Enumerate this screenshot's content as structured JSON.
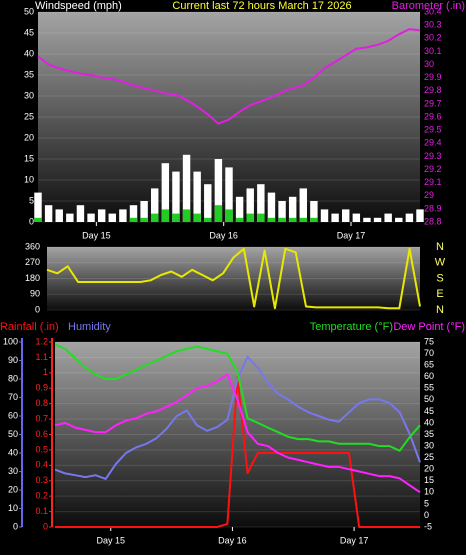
{
  "chart_data": [
    {
      "type": "combo",
      "title": "Current last 72 hours March 17 2026",
      "x": [
        0,
        2,
        4,
        6,
        8,
        10,
        12,
        14,
        16,
        18,
        20,
        22,
        24,
        26,
        28,
        30,
        32,
        34,
        36,
        38,
        40,
        42,
        44,
        46,
        48,
        50,
        52,
        54,
        56,
        58,
        60,
        62,
        64,
        66,
        68,
        70,
        72
      ],
      "xlim": [
        0,
        72
      ],
      "xticks": [
        {
          "value": 11,
          "label": "Day 15"
        },
        {
          "value": 35,
          "label": "Day 16"
        },
        {
          "value": 59,
          "label": "Day 17"
        }
      ],
      "ylim": [
        0,
        50
      ],
      "yticks": [
        0,
        5,
        10,
        15,
        20,
        25,
        30,
        35,
        40,
        45,
        50
      ],
      "y2lim": [
        28.8,
        30.4
      ],
      "y2ticks": [
        28.8,
        28.9,
        29,
        29.1,
        29.2,
        29.3,
        29.4,
        29.5,
        29.6,
        29.7,
        29.8,
        29.9,
        30,
        30.1,
        30.2,
        30.3,
        30.4
      ],
      "grid": true,
      "series": [
        {
          "name": "Windspeed (mph)",
          "kind": "bar",
          "color": "#ffffff",
          "values": [
            7,
            4,
            3,
            2,
            4,
            2,
            3,
            2,
            3,
            4,
            5,
            8,
            14,
            12,
            16,
            12,
            9,
            15,
            13,
            6,
            8,
            9,
            7,
            5,
            6,
            8,
            5,
            3,
            2,
            3,
            2,
            1,
            1,
            2,
            1,
            2,
            3
          ]
        },
        {
          "kind": "bar",
          "color": "#22cc22",
          "values": [
            1,
            0,
            0,
            0,
            0,
            0,
            0,
            0,
            0,
            1,
            1,
            2,
            3,
            2,
            3,
            2,
            1,
            4,
            3,
            1,
            2,
            2,
            1,
            1,
            1,
            1,
            1,
            0,
            0,
            0,
            0,
            0,
            0,
            0,
            0,
            0,
            0
          ]
        },
        {
          "name": "Barometer (.in)",
          "kind": "line",
          "axis": "y2",
          "color": "#e020e0",
          "values": [
            30.06,
            30.0,
            29.97,
            29.95,
            29.93,
            29.92,
            29.9,
            29.89,
            29.87,
            29.84,
            29.82,
            29.8,
            29.78,
            29.77,
            29.73,
            29.68,
            29.62,
            29.55,
            29.58,
            29.64,
            29.69,
            29.72,
            29.75,
            29.79,
            29.82,
            29.84,
            29.9,
            29.97,
            30.02,
            30.07,
            30.12,
            30.13,
            30.15,
            30.18,
            30.23,
            30.27,
            30.26
          ]
        }
      ]
    },
    {
      "type": "line",
      "x": [
        0,
        2,
        4,
        6,
        8,
        10,
        12,
        14,
        16,
        18,
        20,
        22,
        24,
        26,
        28,
        30,
        32,
        34,
        36,
        38,
        40,
        42,
        44,
        46,
        48,
        50,
        52,
        54,
        56,
        58,
        60,
        62,
        64,
        66,
        68,
        70,
        72
      ],
      "xlim": [
        0,
        72
      ],
      "ylim": [
        0,
        360
      ],
      "yticks": [
        0,
        90,
        180,
        270,
        360
      ],
      "y2lim": [
        0,
        360
      ],
      "y2ticks": [
        {
          "value": 0,
          "label": "N"
        },
        {
          "value": 90,
          "label": "E"
        },
        {
          "value": 180,
          "label": "S"
        },
        {
          "value": 270,
          "label": "W"
        },
        {
          "value": 360,
          "label": "N"
        }
      ],
      "grid": true,
      "series": [
        {
          "kind": "line",
          "color": "#e8e800",
          "values": [
            230,
            210,
            250,
            160,
            160,
            160,
            160,
            160,
            160,
            160,
            170,
            200,
            220,
            190,
            230,
            200,
            170,
            210,
            300,
            350,
            20,
            340,
            10,
            350,
            330,
            20,
            15,
            15,
            15,
            15,
            15,
            15,
            15,
            10,
            10,
            350,
            20
          ]
        }
      ]
    },
    {
      "type": "combo",
      "x": [
        0,
        2,
        4,
        6,
        8,
        10,
        12,
        14,
        16,
        18,
        20,
        22,
        24,
        26,
        28,
        30,
        32,
        34,
        36,
        38,
        40,
        42,
        44,
        46,
        48,
        50,
        52,
        54,
        56,
        58,
        60,
        62,
        64,
        66,
        68,
        70,
        72
      ],
      "xlim": [
        0,
        72
      ],
      "xticks": [
        {
          "value": 11,
          "label": "Day 15"
        },
        {
          "value": 35,
          "label": "Day 16"
        },
        {
          "value": 59,
          "label": "Day 17"
        }
      ],
      "ylim": [
        0,
        1.2
      ],
      "yticks": [
        0,
        0.1,
        0.2,
        0.3,
        0.4,
        0.5,
        0.6,
        0.7,
        0.8,
        0.9,
        1,
        1.1,
        1.2
      ],
      "y3lim": [
        0,
        100
      ],
      "y3ticks": [
        0,
        10,
        20,
        30,
        40,
        50,
        60,
        70,
        80,
        90,
        100
      ],
      "y2lim": [
        -5,
        75
      ],
      "y2ticks": [
        -5,
        0,
        5,
        10,
        15,
        20,
        25,
        30,
        35,
        40,
        45,
        50,
        55,
        60,
        65,
        70,
        75
      ],
      "grid": true,
      "series": [
        {
          "name": "Rainfall (.in)",
          "kind": "line",
          "color": "#ff1111",
          "values": [
            0,
            0,
            0,
            0,
            0,
            0,
            0,
            0,
            0,
            0,
            0,
            0,
            0,
            0,
            0,
            0,
            0,
            0.02,
            0.97,
            0.35,
            0.48,
            0.48,
            0.48,
            0.48,
            0.48,
            0.48,
            0.48,
            0.48,
            0.48,
            0.48,
            0,
            0,
            0,
            0,
            0,
            0,
            0
          ]
        },
        {
          "name": "Humidity",
          "kind": "line",
          "axis": "y3",
          "color": "#7777ee",
          "values": [
            31,
            29,
            28,
            27,
            28,
            26,
            34,
            40,
            43,
            45,
            48,
            53,
            60,
            63,
            55,
            52,
            54,
            58,
            80,
            92,
            86,
            78,
            72,
            69,
            65,
            62,
            60,
            58,
            57,
            62,
            67,
            69,
            69,
            67,
            62,
            50,
            35
          ]
        },
        {
          "name": "Temperature (°F)",
          "kind": "line",
          "axis": "y2",
          "color": "#22dd22",
          "values": [
            74,
            72,
            68,
            64,
            61,
            59,
            59,
            61,
            63,
            65,
            67,
            69,
            71,
            72,
            73,
            72,
            71,
            70,
            62,
            42,
            40,
            38,
            36,
            34,
            33,
            33,
            32,
            32,
            31,
            31,
            31,
            31,
            30,
            30,
            28,
            34,
            39
          ]
        },
        {
          "name": "Dew Point (°F)",
          "kind": "line",
          "axis": "y2",
          "color": "#ff22ff",
          "values": [
            39,
            40,
            38,
            37,
            36,
            36,
            39,
            41,
            42,
            44,
            45,
            47,
            49,
            52,
            55,
            56,
            58,
            61,
            50,
            36,
            31,
            30,
            27,
            25,
            24,
            23,
            22,
            21,
            21,
            20,
            19,
            18,
            17,
            17,
            16,
            13,
            10
          ]
        }
      ]
    }
  ]
}
